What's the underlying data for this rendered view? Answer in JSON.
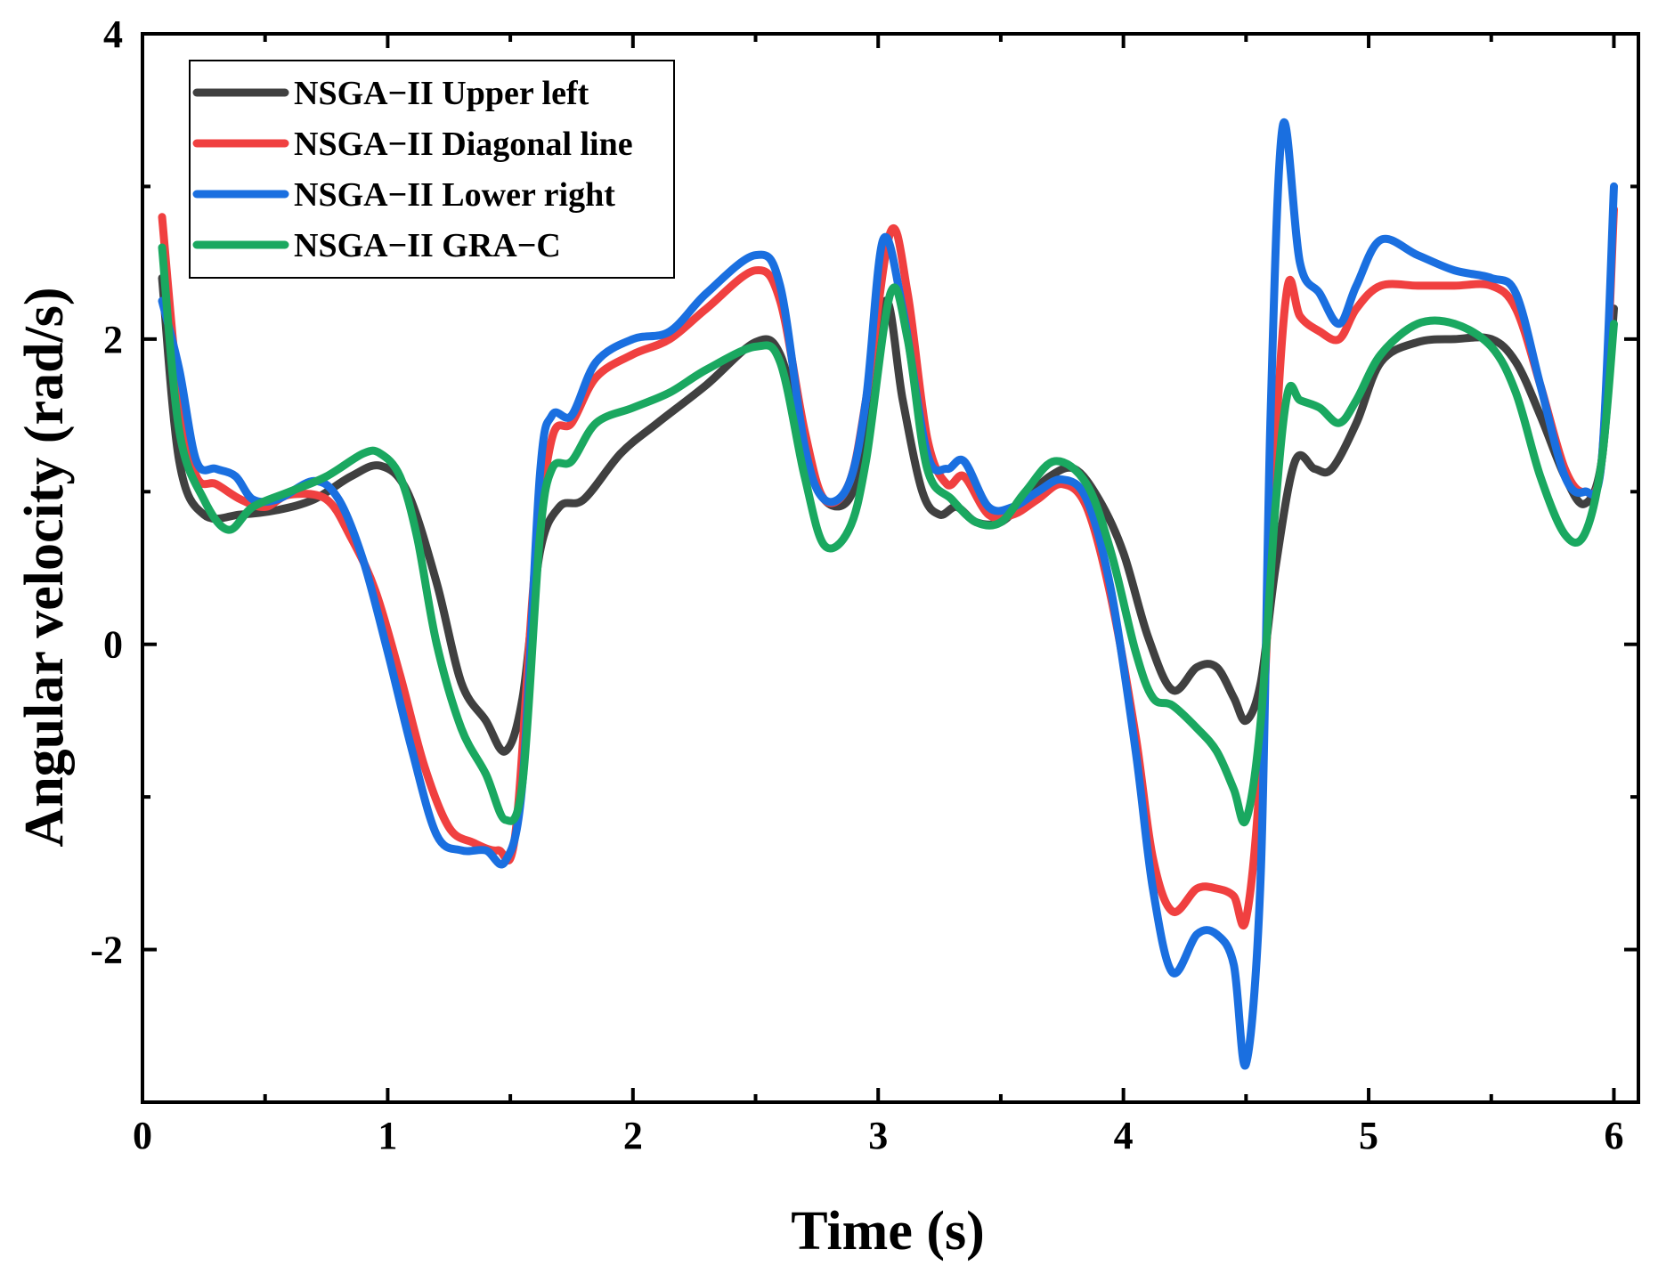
{
  "chart_data": {
    "type": "line",
    "title": "",
    "xlabel": "Time (s)",
    "ylabel": "Angular velocity (rad/s)",
    "xlim": [
      0,
      6.1
    ],
    "ylim": [
      -3,
      4
    ],
    "xticks": [
      0,
      1,
      2,
      3,
      4,
      5,
      6
    ],
    "xtick_labels": [
      "0",
      "1",
      "2",
      "3",
      "4",
      "5",
      "6"
    ],
    "yticks": [
      -2,
      0,
      2,
      4
    ],
    "ytick_labels": [
      "-2",
      "0",
      "2",
      "4"
    ],
    "legend_position": "top-left",
    "series": [
      {
        "name": "NSGA−II Upper left",
        "color": "#404040",
        "x": [
          0.08,
          0.15,
          0.25,
          0.4,
          0.55,
          0.7,
          0.85,
          0.97,
          1.08,
          1.2,
          1.3,
          1.4,
          1.48,
          1.55,
          1.62,
          1.7,
          1.8,
          1.95,
          2.1,
          2.3,
          2.5,
          2.6,
          2.7,
          2.78,
          2.88,
          2.95,
          3.03,
          3.1,
          3.18,
          3.25,
          3.32,
          3.4,
          3.5,
          3.6,
          3.7,
          3.8,
          3.9,
          4.0,
          4.1,
          4.2,
          4.3,
          4.38,
          4.45,
          4.5,
          4.56,
          4.62,
          4.7,
          4.78,
          4.85,
          4.95,
          5.05,
          5.2,
          5.35,
          5.5,
          5.6,
          5.7,
          5.8,
          5.88,
          5.95,
          6.0
        ],
        "values": [
          2.4,
          1.2,
          0.85,
          0.85,
          0.88,
          0.95,
          1.1,
          1.17,
          1.0,
          0.4,
          -0.25,
          -0.5,
          -0.7,
          -0.35,
          0.6,
          0.9,
          0.95,
          1.25,
          1.45,
          1.7,
          1.98,
          1.9,
          1.3,
          0.95,
          0.95,
          1.35,
          2.25,
          1.6,
          1.0,
          0.85,
          0.9,
          0.8,
          0.8,
          0.95,
          1.1,
          1.15,
          0.95,
          0.6,
          0.05,
          -0.3,
          -0.15,
          -0.15,
          -0.35,
          -0.5,
          -0.25,
          0.5,
          1.2,
          1.15,
          1.15,
          1.45,
          1.85,
          1.98,
          2.0,
          2.0,
          1.85,
          1.5,
          1.1,
          0.92,
          1.2,
          2.2
        ]
      },
      {
        "name": "NSGA−II Diagonal line",
        "color": "#f04040",
        "x": [
          0.08,
          0.15,
          0.22,
          0.3,
          0.4,
          0.5,
          0.6,
          0.75,
          0.85,
          0.95,
          1.05,
          1.15,
          1.25,
          1.35,
          1.45,
          1.52,
          1.6,
          1.67,
          1.75,
          1.85,
          2.0,
          2.15,
          2.3,
          2.5,
          2.6,
          2.7,
          2.78,
          2.88,
          2.95,
          3.05,
          3.12,
          3.2,
          3.28,
          3.35,
          3.45,
          3.55,
          3.65,
          3.75,
          3.85,
          3.95,
          4.05,
          4.12,
          4.2,
          4.3,
          4.38,
          4.45,
          4.5,
          4.56,
          4.62,
          4.67,
          4.72,
          4.8,
          4.88,
          4.95,
          5.05,
          5.2,
          5.35,
          5.5,
          5.6,
          5.7,
          5.8,
          5.88,
          5.95,
          6.0
        ],
        "values": [
          2.8,
          1.6,
          1.1,
          1.05,
          0.95,
          0.9,
          0.98,
          0.95,
          0.7,
          0.35,
          -0.2,
          -0.8,
          -1.2,
          -1.3,
          -1.35,
          -1.25,
          0.5,
          1.35,
          1.45,
          1.75,
          1.9,
          2.0,
          2.2,
          2.45,
          2.25,
          1.4,
          0.95,
          1.05,
          1.6,
          2.7,
          2.3,
          1.35,
          1.05,
          1.1,
          0.85,
          0.85,
          0.95,
          1.05,
          0.9,
          0.3,
          -0.6,
          -1.4,
          -1.75,
          -1.6,
          -1.6,
          -1.65,
          -1.8,
          -0.8,
          1.3,
          2.35,
          2.15,
          2.05,
          2.0,
          2.2,
          2.35,
          2.35,
          2.35,
          2.35,
          2.2,
          1.7,
          1.15,
          1.0,
          1.2,
          2.85
        ]
      },
      {
        "name": "NSGA−II Lower right",
        "color": "#1a6fe0",
        "x": [
          0.08,
          0.15,
          0.22,
          0.3,
          0.38,
          0.45,
          0.55,
          0.7,
          0.8,
          0.9,
          1.0,
          1.1,
          1.2,
          1.3,
          1.4,
          1.48,
          1.55,
          1.62,
          1.67,
          1.75,
          1.85,
          2.0,
          2.15,
          2.3,
          2.5,
          2.6,
          2.7,
          2.78,
          2.88,
          2.95,
          3.02,
          3.1,
          3.2,
          3.28,
          3.35,
          3.45,
          3.55,
          3.65,
          3.75,
          3.85,
          3.95,
          4.05,
          4.12,
          4.2,
          4.3,
          4.38,
          4.45,
          4.5,
          4.56,
          4.6,
          4.65,
          4.72,
          4.8,
          4.88,
          4.95,
          5.05,
          5.2,
          5.35,
          5.5,
          5.6,
          5.7,
          5.8,
          5.88,
          5.95,
          6.0
        ],
        "values": [
          2.25,
          1.8,
          1.2,
          1.15,
          1.1,
          0.95,
          0.95,
          1.07,
          0.95,
          0.55,
          -0.05,
          -0.7,
          -1.25,
          -1.35,
          -1.35,
          -1.42,
          -0.9,
          1.1,
          1.5,
          1.5,
          1.85,
          2.0,
          2.05,
          2.3,
          2.55,
          2.35,
          1.3,
          0.95,
          1.05,
          1.6,
          2.65,
          2.2,
          1.25,
          1.15,
          1.2,
          0.9,
          0.9,
          1.0,
          1.08,
          0.95,
          0.35,
          -0.7,
          -1.6,
          -2.15,
          -1.9,
          -1.9,
          -2.1,
          -2.75,
          -1.5,
          1.5,
          3.4,
          2.5,
          2.3,
          2.1,
          2.35,
          2.65,
          2.55,
          2.45,
          2.4,
          2.3,
          1.7,
          1.1,
          1.0,
          1.2,
          3.0
        ]
      },
      {
        "name": "NSGA−II GRA−C",
        "color": "#1aa860",
        "x": [
          0.08,
          0.15,
          0.25,
          0.35,
          0.45,
          0.6,
          0.75,
          0.9,
          0.97,
          1.05,
          1.12,
          1.2,
          1.3,
          1.4,
          1.48,
          1.55,
          1.62,
          1.67,
          1.75,
          1.85,
          2.0,
          2.15,
          2.3,
          2.5,
          2.6,
          2.7,
          2.78,
          2.88,
          2.95,
          3.05,
          3.12,
          3.2,
          3.3,
          3.4,
          3.5,
          3.6,
          3.72,
          3.85,
          3.95,
          4.05,
          4.12,
          4.2,
          4.3,
          4.38,
          4.45,
          4.5,
          4.56,
          4.62,
          4.67,
          4.72,
          4.8,
          4.88,
          4.95,
          5.05,
          5.2,
          5.35,
          5.5,
          5.6,
          5.7,
          5.8,
          5.88,
          5.95,
          6.0
        ],
        "values": [
          2.6,
          1.4,
          0.95,
          0.75,
          0.9,
          1.0,
          1.1,
          1.25,
          1.25,
          1.1,
          0.7,
          0.0,
          -0.55,
          -0.85,
          -1.15,
          -0.9,
          0.7,
          1.15,
          1.2,
          1.45,
          1.55,
          1.65,
          1.8,
          1.95,
          1.85,
          1.1,
          0.65,
          0.75,
          1.2,
          2.3,
          2.0,
          1.15,
          0.95,
          0.8,
          0.8,
          1.0,
          1.2,
          1.05,
          0.6,
          -0.05,
          -0.35,
          -0.4,
          -0.55,
          -0.7,
          -0.95,
          -1.15,
          -0.5,
          0.9,
          1.65,
          1.6,
          1.55,
          1.45,
          1.6,
          1.9,
          2.1,
          2.1,
          1.95,
          1.65,
          1.1,
          0.72,
          0.72,
          1.2,
          2.1
        ]
      }
    ]
  }
}
